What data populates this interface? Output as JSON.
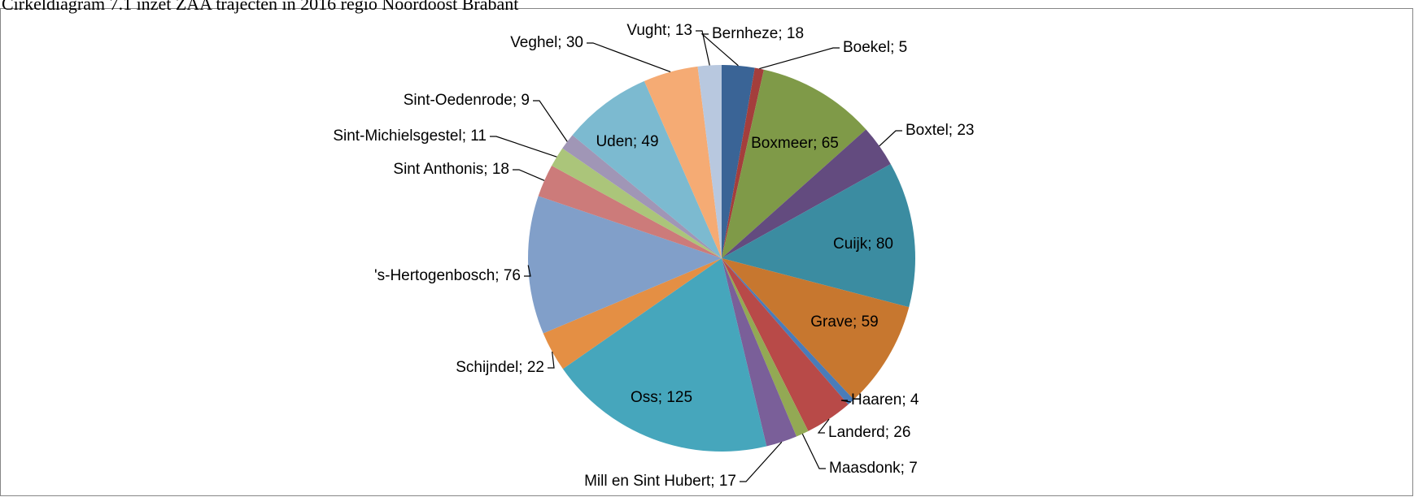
{
  "chart_data": {
    "type": "pie",
    "title": "Cirkeldiagram 7.1 inzet ZAA trajecten in 2016 regio Noordoost Brabant",
    "values": [
      18,
      5,
      65,
      23,
      80,
      59,
      4,
      26,
      7,
      17,
      125,
      22,
      76,
      18,
      11,
      9,
      49,
      30,
      13
    ],
    "value_labels": [
      "Bernheze; 18",
      "Boekel; 5",
      "Boxmeer; 65",
      "Boxtel; 23",
      "Cuijk; 80",
      "Grave; 59",
      "Haaren; 4",
      "Landerd; 26",
      "Maasdonk; 7",
      "Mill en Sint Hubert; 17",
      "Oss; 125",
      "Schijndel; 22",
      "'s-Hertogenbosch; 76",
      "Sint Anthonis; 18",
      "Sint-Michielsgestel; 11",
      "Sint-Oedenrode; 9",
      "Uden; 49",
      "Veghel; 30",
      "Vught; 13"
    ],
    "colors": [
      "#3a6496",
      "#a43e3c",
      "#7f9a48",
      "#634b7f",
      "#3b8ca1",
      "#c7772f",
      "#4a7cb9",
      "#b84a48",
      "#93a954",
      "#7a5f99",
      "#46a6bc",
      "#e48f44",
      "#819fc9",
      "#cc7b7a",
      "#abc57a",
      "#a096b6",
      "#7cbad0",
      "#f5ab74",
      "#b8c8df"
    ]
  }
}
